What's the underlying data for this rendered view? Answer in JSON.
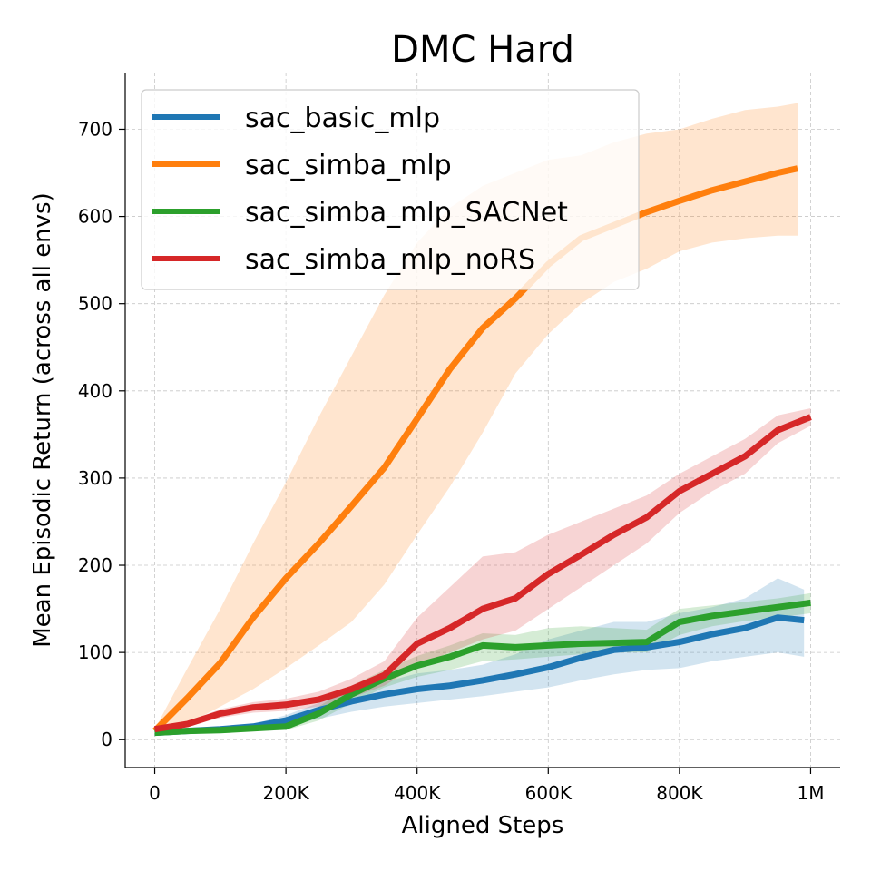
{
  "chart_data": {
    "type": "line",
    "title": "DMC Hard",
    "xlabel": "Aligned Steps",
    "ylabel": "Mean Episodic Return (across all envs)",
    "xlim": [
      -45000,
      1045000
    ],
    "ylim": [
      -32,
      765
    ],
    "xticks": [
      0,
      200000,
      400000,
      600000,
      800000,
      1000000
    ],
    "xtick_labels": [
      "0",
      "200K",
      "400K",
      "600K",
      "800K",
      "1M"
    ],
    "yticks": [
      0,
      100,
      200,
      300,
      400,
      500,
      600,
      700
    ],
    "ytick_labels": [
      "0",
      "100",
      "200",
      "300",
      "400",
      "500",
      "600",
      "700"
    ],
    "grid": true,
    "legend_position": "top-left",
    "series": [
      {
        "name": "sac_basic_mlp",
        "color": "#1f77b4",
        "x": [
          0,
          50000,
          100000,
          150000,
          200000,
          250000,
          300000,
          350000,
          400000,
          450000,
          500000,
          550000,
          600000,
          650000,
          700000,
          750000,
          800000,
          850000,
          900000,
          950000,
          990000
        ],
        "y": [
          8,
          10,
          12,
          15,
          22,
          34,
          44,
          52,
          58,
          62,
          68,
          75,
          83,
          94,
          103,
          106,
          112,
          121,
          128,
          140,
          137
        ],
        "lower": [
          6,
          8,
          10,
          12,
          16,
          24,
          32,
          38,
          42,
          46,
          50,
          55,
          60,
          68,
          75,
          80,
          82,
          90,
          95,
          100,
          95
        ],
        "upper": [
          10,
          12,
          14,
          18,
          28,
          42,
          56,
          66,
          76,
          80,
          86,
          98,
          115,
          125,
          135,
          135,
          145,
          152,
          162,
          185,
          172
        ]
      },
      {
        "name": "sac_simba_mlp",
        "color": "#ff7f0e",
        "x": [
          0,
          50000,
          100000,
          150000,
          200000,
          250000,
          300000,
          350000,
          400000,
          450000,
          500000,
          550000,
          600000,
          650000,
          700000,
          750000,
          800000,
          850000,
          900000,
          950000,
          980000
        ],
        "y": [
          10,
          48,
          88,
          140,
          185,
          225,
          268,
          312,
          368,
          425,
          472,
          506,
          545,
          575,
          590,
          605,
          618,
          630,
          640,
          650,
          655
        ],
        "lower": [
          8,
          18,
          38,
          58,
          82,
          108,
          135,
          178,
          235,
          290,
          352,
          420,
          465,
          500,
          525,
          540,
          560,
          570,
          575,
          578,
          578
        ],
        "upper": [
          12,
          82,
          150,
          225,
          295,
          370,
          440,
          510,
          570,
          610,
          635,
          650,
          665,
          670,
          685,
          695,
          700,
          712,
          722,
          726,
          730
        ]
      },
      {
        "name": "sac_simba_mlp_SACNet",
        "color": "#2ca02c",
        "x": [
          0,
          50000,
          100000,
          150000,
          200000,
          250000,
          300000,
          350000,
          400000,
          450000,
          500000,
          550000,
          600000,
          650000,
          700000,
          750000,
          800000,
          850000,
          900000,
          950000,
          1000000
        ],
        "y": [
          8,
          10,
          11,
          13,
          15,
          30,
          52,
          70,
          85,
          95,
          108,
          106,
          108,
          110,
          111,
          112,
          135,
          142,
          147,
          152,
          157
        ],
        "lower": [
          6,
          8,
          9,
          10,
          11,
          22,
          42,
          60,
          72,
          80,
          90,
          92,
          95,
          98,
          100,
          100,
          120,
          130,
          136,
          140,
          145
        ],
        "upper": [
          10,
          12,
          13,
          16,
          19,
          38,
          62,
          80,
          96,
          108,
          122,
          120,
          128,
          130,
          128,
          126,
          150,
          154,
          158,
          162,
          168
        ]
      },
      {
        "name": "sac_simba_mlp_noRS",
        "color": "#d62728",
        "x": [
          0,
          50000,
          100000,
          150000,
          200000,
          250000,
          300000,
          350000,
          400000,
          450000,
          500000,
          550000,
          600000,
          650000,
          700000,
          750000,
          800000,
          850000,
          900000,
          950000,
          1000000
        ],
        "y": [
          12,
          18,
          30,
          37,
          40,
          46,
          58,
          74,
          110,
          128,
          150,
          162,
          190,
          212,
          235,
          255,
          285,
          305,
          325,
          355,
          370
        ],
        "lower": [
          10,
          15,
          25,
          31,
          33,
          38,
          48,
          62,
          85,
          100,
          115,
          125,
          150,
          175,
          200,
          225,
          260,
          285,
          305,
          340,
          360
        ],
        "upper": [
          14,
          21,
          35,
          43,
          47,
          55,
          70,
          90,
          140,
          175,
          210,
          215,
          235,
          250,
          265,
          280,
          305,
          325,
          345,
          372,
          380
        ]
      }
    ]
  }
}
